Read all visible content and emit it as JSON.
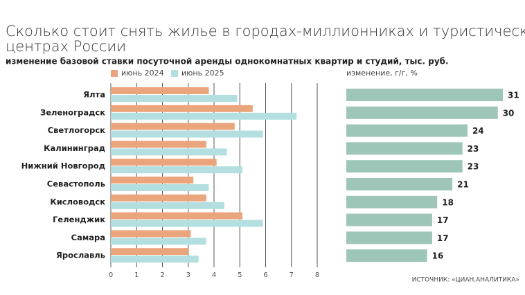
{
  "chart_data": [
    {
      "type": "bar",
      "orientation": "horizontal",
      "title": "Сколько стоит снять жилье в городах-миллионниках и туристических центрах России",
      "subtitle": "изменение базовой ставки посуточной аренды однокомнатных квартир и студий, тыс. руб.",
      "categories": [
        "Ялта",
        "Зеленоградск",
        "Светлогорск",
        "Калининград",
        "Нижний Новгород",
        "Севастополь",
        "Кисловодск",
        "Геленджик",
        "Самара",
        "Ярославль"
      ],
      "series": [
        {
          "name": "июнь 2024",
          "color": "#eba57d",
          "values": [
            3.8,
            5.5,
            4.8,
            3.7,
            4.1,
            3.2,
            3.7,
            5.1,
            3.1,
            3.0
          ]
        },
        {
          "name": "июнь 2025",
          "color": "#b4dfe0",
          "values": [
            4.9,
            7.2,
            5.9,
            4.5,
            5.1,
            3.8,
            4.4,
            5.9,
            3.7,
            3.4
          ]
        }
      ],
      "xlim": [
        0,
        8
      ],
      "xticks": [
        0,
        1,
        2,
        3,
        4,
        5,
        6,
        7,
        8
      ],
      "grid": true,
      "source": "ИСТОЧНИК: «ЦИАН.АНАЛИТИКА»"
    },
    {
      "type": "bar",
      "orientation": "horizontal",
      "title": "изменение, г/г, %",
      "color": "#9dc6b8",
      "values": [
        31,
        30,
        24,
        23,
        23,
        21,
        18,
        17,
        17,
        16
      ]
    }
  ]
}
